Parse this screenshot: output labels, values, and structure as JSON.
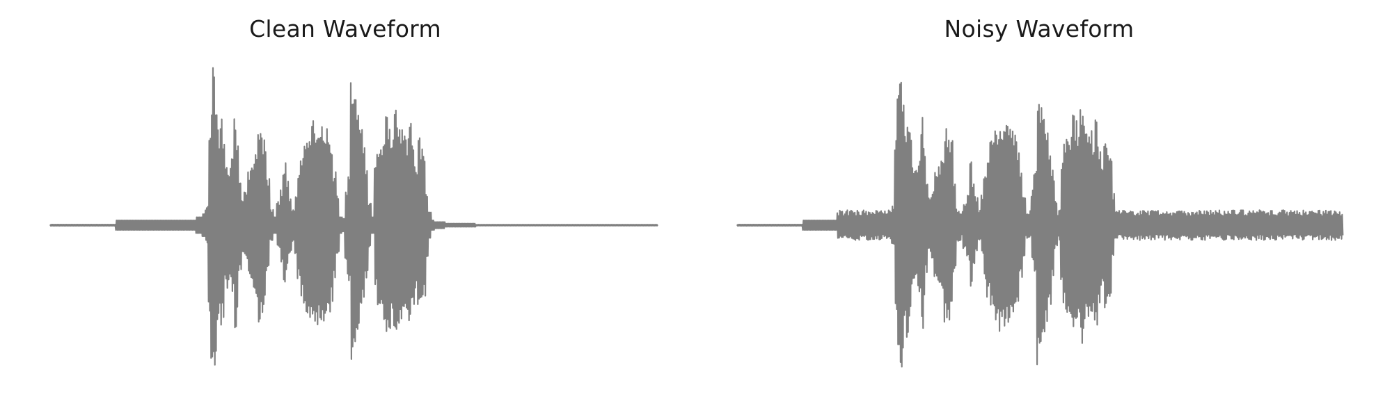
{
  "chart_data": [
    {
      "type": "line",
      "title": "Clean Waveform",
      "xlabel": "",
      "ylabel": "",
      "axes_visible": false,
      "grid": false,
      "color": "#808080",
      "ylim": [
        -1,
        1
      ],
      "segments": [
        [
          0.0,
          0.24,
          0.004
        ],
        [
          0.24,
          0.215,
          0.03
        ],
        [
          0.25,
          0.24,
          0.05
        ],
        [
          0.255,
          0.243,
          0.07
        ],
        [
          0.26,
          0.245,
          0.12
        ],
        [
          0.264,
          0.255,
          0.6
        ],
        [
          0.268,
          0.262,
          0.88
        ],
        [
          0.272,
          0.266,
          1.0
        ],
        [
          0.275,
          0.27,
          0.8
        ],
        [
          0.278,
          0.274,
          0.6
        ],
        [
          0.28,
          0.276,
          0.55
        ],
        [
          0.283,
          0.279,
          0.72
        ],
        [
          0.287,
          0.283,
          0.6
        ],
        [
          0.292,
          0.288,
          0.4
        ],
        [
          0.298,
          0.294,
          0.36
        ],
        [
          0.303,
          0.299,
          0.45
        ],
        [
          0.307,
          0.303,
          0.68
        ],
        [
          0.31,
          0.306,
          0.55
        ],
        [
          0.314,
          0.31,
          0.3
        ],
        [
          0.319,
          0.315,
          0.17
        ],
        [
          0.324,
          0.32,
          0.22
        ],
        [
          0.33,
          0.326,
          0.35
        ],
        [
          0.336,
          0.332,
          0.4
        ],
        [
          0.341,
          0.337,
          0.46
        ],
        [
          0.346,
          0.342,
          0.62
        ],
        [
          0.35,
          0.346,
          0.6
        ],
        [
          0.355,
          0.351,
          0.55
        ],
        [
          0.361,
          0.356,
          0.3
        ],
        [
          0.367,
          0.362,
          0.1
        ],
        [
          0.372,
          0.368,
          0.05
        ],
        [
          0.378,
          0.374,
          0.15
        ],
        [
          0.383,
          0.379,
          0.23
        ],
        [
          0.388,
          0.384,
          0.4
        ],
        [
          0.392,
          0.388,
          0.28
        ],
        [
          0.397,
          0.393,
          0.18
        ],
        [
          0.402,
          0.398,
          0.1
        ],
        [
          0.407,
          0.403,
          0.2
        ],
        [
          0.411,
          0.407,
          0.34
        ],
        [
          0.416,
          0.412,
          0.46
        ],
        [
          0.421,
          0.417,
          0.54
        ],
        [
          0.426,
          0.422,
          0.6
        ],
        [
          0.431,
          0.427,
          0.64
        ],
        [
          0.436,
          0.432,
          0.67
        ],
        [
          0.441,
          0.437,
          0.66
        ],
        [
          0.446,
          0.442,
          0.64
        ],
        [
          0.451,
          0.447,
          0.66
        ],
        [
          0.456,
          0.452,
          0.64
        ],
        [
          0.461,
          0.457,
          0.58
        ],
        [
          0.465,
          0.461,
          0.48
        ],
        [
          0.47,
          0.466,
          0.34
        ],
        [
          0.475,
          0.471,
          0.2
        ],
        [
          0.48,
          0.476,
          0.05
        ],
        [
          0.485,
          0.481,
          0.04
        ],
        [
          0.489,
          0.486,
          0.22
        ],
        [
          0.494,
          0.49,
          0.35
        ],
        [
          0.498,
          0.495,
          0.9
        ],
        [
          0.503,
          0.499,
          0.82
        ],
        [
          0.508,
          0.504,
          0.7
        ],
        [
          0.513,
          0.509,
          0.62
        ],
        [
          0.518,
          0.514,
          0.5
        ],
        [
          0.523,
          0.519,
          0.35
        ],
        [
          0.528,
          0.524,
          0.15
        ],
        [
          0.533,
          0.529,
          0.05
        ],
        [
          0.538,
          0.534,
          0.4
        ],
        [
          0.542,
          0.538,
          0.52
        ],
        [
          0.546,
          0.542,
          0.55
        ],
        [
          0.551,
          0.547,
          0.6
        ],
        [
          0.556,
          0.552,
          0.7
        ],
        [
          0.56,
          0.556,
          0.66
        ],
        [
          0.565,
          0.561,
          0.6
        ],
        [
          0.57,
          0.566,
          0.75
        ],
        [
          0.575,
          0.571,
          0.7
        ],
        [
          0.58,
          0.576,
          0.62
        ],
        [
          0.585,
          0.581,
          0.6
        ],
        [
          0.589,
          0.585,
          0.55
        ],
        [
          0.594,
          0.59,
          0.68
        ],
        [
          0.599,
          0.595,
          0.52
        ],
        [
          0.604,
          0.6,
          0.4
        ],
        [
          0.609,
          0.605,
          0.55
        ],
        [
          0.613,
          0.609,
          0.52
        ],
        [
          0.618,
          0.614,
          0.45
        ],
        [
          0.622,
          0.618,
          0.2
        ],
        [
          0.627,
          0.623,
          0.08
        ],
        [
          0.632,
          0.628,
          0.03
        ],
        [
          0.65,
          0.633,
          0.02
        ],
        [
          0.7,
          0.651,
          0.01
        ],
        [
          1.0,
          0.701,
          0.003
        ]
      ]
    },
    {
      "type": "line",
      "title": "Noisy Waveform",
      "xlabel": "",
      "ylabel": "",
      "axes_visible": false,
      "grid": false,
      "color": "#808080",
      "ylim": [
        -1,
        1
      ]
    }
  ]
}
